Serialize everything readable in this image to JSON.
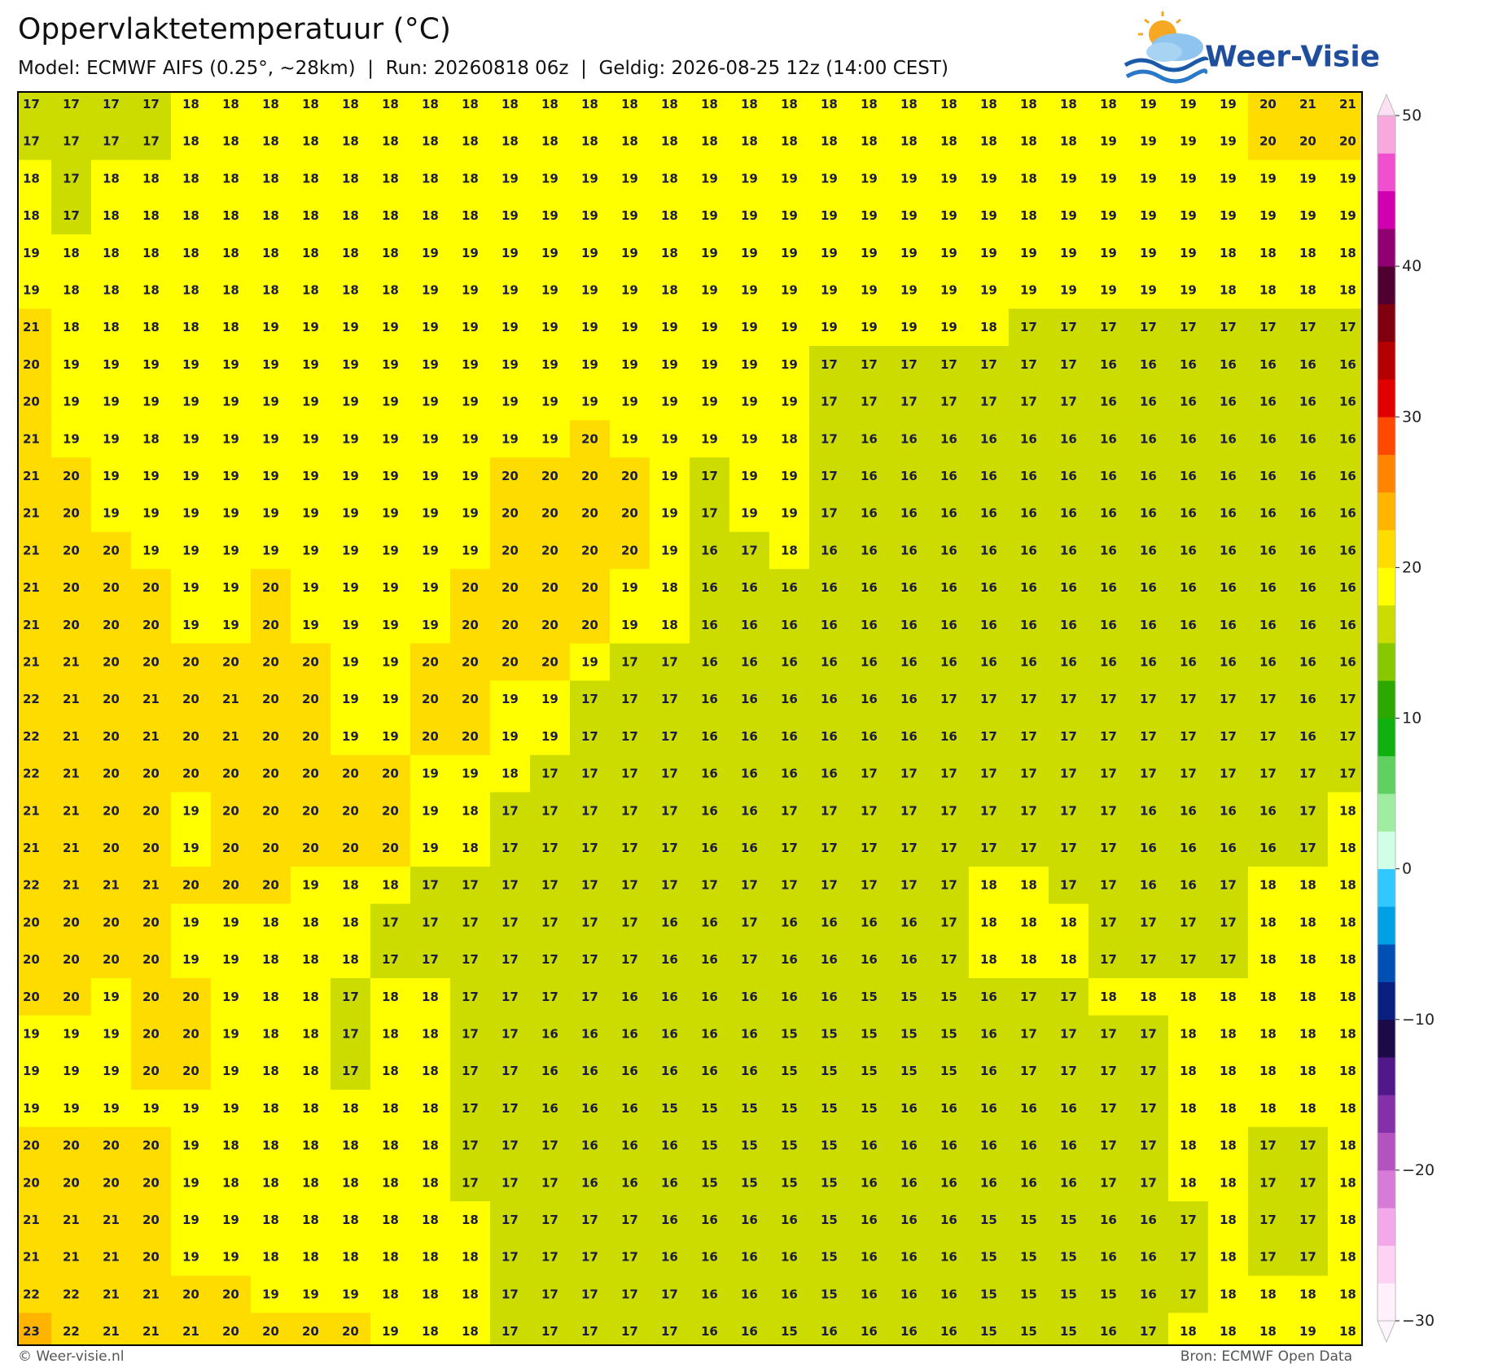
{
  "header": {
    "title": "Oppervlaktetemperatuur (°C)",
    "subtitle": "Model: ECMWF AIFS (0.25°, ~28km)  |  Run: 20260818 06z  |  Geldig: 2026-08-25 12z (14:00 CEST)"
  },
  "logo": {
    "text": "Weer-Visie"
  },
  "map": {
    "grid": [
      [
        17,
        17,
        17,
        17,
        18,
        18,
        18,
        18,
        18,
        18,
        18,
        18,
        18,
        18,
        18,
        18,
        18,
        18,
        18,
        18,
        18,
        18,
        18,
        18,
        18,
        18,
        18,
        18,
        19,
        19,
        19,
        20,
        21,
        21
      ],
      [
        17,
        17,
        17,
        17,
        18,
        18,
        18,
        18,
        18,
        18,
        18,
        18,
        18,
        18,
        18,
        18,
        18,
        18,
        18,
        18,
        18,
        18,
        18,
        18,
        18,
        18,
        18,
        19,
        19,
        19,
        19,
        20,
        20,
        20
      ],
      [
        18,
        17,
        18,
        18,
        18,
        18,
        18,
        18,
        18,
        18,
        18,
        18,
        19,
        19,
        19,
        19,
        18,
        19,
        19,
        19,
        19,
        19,
        19,
        19,
        19,
        18,
        19,
        19,
        19,
        19,
        19,
        19,
        19,
        19
      ],
      [
        18,
        17,
        18,
        18,
        18,
        18,
        18,
        18,
        18,
        18,
        18,
        18,
        19,
        19,
        19,
        19,
        18,
        19,
        19,
        19,
        19,
        19,
        19,
        19,
        19,
        18,
        19,
        19,
        19,
        19,
        19,
        19,
        19,
        19
      ],
      [
        19,
        18,
        18,
        18,
        18,
        18,
        18,
        18,
        18,
        18,
        19,
        19,
        19,
        19,
        19,
        19,
        18,
        19,
        19,
        19,
        19,
        19,
        19,
        19,
        19,
        19,
        19,
        19,
        19,
        19,
        18,
        18,
        18,
        18
      ],
      [
        19,
        18,
        18,
        18,
        18,
        18,
        18,
        18,
        18,
        18,
        19,
        19,
        19,
        19,
        19,
        19,
        18,
        19,
        19,
        19,
        19,
        19,
        19,
        19,
        19,
        19,
        19,
        19,
        19,
        19,
        18,
        18,
        18,
        18
      ],
      [
        21,
        18,
        18,
        18,
        18,
        18,
        19,
        19,
        19,
        19,
        19,
        19,
        19,
        19,
        19,
        19,
        19,
        19,
        19,
        19,
        19,
        19,
        19,
        19,
        18,
        17,
        17,
        17,
        17,
        17,
        17,
        17,
        17,
        17
      ],
      [
        20,
        19,
        19,
        19,
        19,
        19,
        19,
        19,
        19,
        19,
        19,
        19,
        19,
        19,
        19,
        19,
        19,
        19,
        19,
        19,
        17,
        17,
        17,
        17,
        17,
        17,
        17,
        16,
        16,
        16,
        16,
        16,
        16,
        16
      ],
      [
        20,
        19,
        19,
        19,
        19,
        19,
        19,
        19,
        19,
        19,
        19,
        19,
        19,
        19,
        19,
        19,
        19,
        19,
        19,
        19,
        17,
        17,
        17,
        17,
        17,
        17,
        17,
        16,
        16,
        16,
        16,
        16,
        16,
        16
      ],
      [
        21,
        19,
        19,
        18,
        19,
        19,
        19,
        19,
        19,
        19,
        19,
        19,
        19,
        19,
        20,
        19,
        19,
        19,
        19,
        18,
        17,
        16,
        16,
        16,
        16,
        16,
        16,
        16,
        16,
        16,
        16,
        16,
        16,
        16
      ],
      [
        21,
        20,
        19,
        19,
        19,
        19,
        19,
        19,
        19,
        19,
        19,
        19,
        20,
        20,
        20,
        20,
        19,
        17,
        19,
        19,
        17,
        16,
        16,
        16,
        16,
        16,
        16,
        16,
        16,
        16,
        16,
        16,
        16,
        16
      ],
      [
        21,
        20,
        19,
        19,
        19,
        19,
        19,
        19,
        19,
        19,
        19,
        19,
        20,
        20,
        20,
        20,
        19,
        17,
        19,
        19,
        17,
        16,
        16,
        16,
        16,
        16,
        16,
        16,
        16,
        16,
        16,
        16,
        16,
        16
      ],
      [
        21,
        20,
        20,
        19,
        19,
        19,
        19,
        19,
        19,
        19,
        19,
        19,
        20,
        20,
        20,
        20,
        19,
        16,
        17,
        18,
        16,
        16,
        16,
        16,
        16,
        16,
        16,
        16,
        16,
        16,
        16,
        16,
        16,
        16
      ],
      [
        21,
        20,
        20,
        20,
        19,
        19,
        20,
        19,
        19,
        19,
        19,
        20,
        20,
        20,
        20,
        19,
        18,
        16,
        16,
        16,
        16,
        16,
        16,
        16,
        16,
        16,
        16,
        16,
        16,
        16,
        16,
        16,
        16,
        16
      ],
      [
        21,
        20,
        20,
        20,
        19,
        19,
        20,
        19,
        19,
        19,
        19,
        20,
        20,
        20,
        20,
        19,
        18,
        16,
        16,
        16,
        16,
        16,
        16,
        16,
        16,
        16,
        16,
        16,
        16,
        16,
        16,
        16,
        16,
        16
      ],
      [
        21,
        21,
        20,
        20,
        20,
        20,
        20,
        20,
        19,
        19,
        20,
        20,
        20,
        20,
        19,
        17,
        17,
        16,
        16,
        16,
        16,
        16,
        16,
        16,
        16,
        16,
        16,
        16,
        16,
        16,
        16,
        16,
        16,
        16
      ],
      [
        22,
        21,
        20,
        21,
        20,
        21,
        20,
        20,
        19,
        19,
        20,
        20,
        19,
        19,
        17,
        17,
        17,
        16,
        16,
        16,
        16,
        16,
        16,
        17,
        17,
        17,
        17,
        17,
        17,
        17,
        17,
        17,
        16,
        17
      ],
      [
        22,
        21,
        20,
        21,
        20,
        21,
        20,
        20,
        19,
        19,
        20,
        20,
        19,
        19,
        17,
        17,
        17,
        16,
        16,
        16,
        16,
        16,
        16,
        16,
        17,
        17,
        17,
        17,
        17,
        17,
        17,
        17,
        16,
        17
      ],
      [
        22,
        21,
        20,
        20,
        20,
        20,
        20,
        20,
        20,
        20,
        19,
        19,
        18,
        17,
        17,
        17,
        17,
        16,
        16,
        16,
        16,
        17,
        17,
        17,
        17,
        17,
        17,
        17,
        17,
        17,
        17,
        17,
        17,
        17
      ],
      [
        21,
        21,
        20,
        20,
        19,
        20,
        20,
        20,
        20,
        20,
        19,
        18,
        17,
        17,
        17,
        17,
        17,
        16,
        16,
        17,
        17,
        17,
        17,
        17,
        17,
        17,
        17,
        17,
        16,
        16,
        16,
        16,
        17,
        18
      ],
      [
        21,
        21,
        20,
        20,
        19,
        20,
        20,
        20,
        20,
        20,
        19,
        18,
        17,
        17,
        17,
        17,
        17,
        16,
        16,
        17,
        17,
        17,
        17,
        17,
        17,
        17,
        17,
        17,
        16,
        16,
        16,
        16,
        17,
        18
      ],
      [
        22,
        21,
        21,
        21,
        20,
        20,
        20,
        19,
        18,
        18,
        17,
        17,
        17,
        17,
        17,
        17,
        17,
        17,
        17,
        17,
        17,
        17,
        17,
        17,
        18,
        18,
        17,
        17,
        16,
        16,
        17,
        18,
        18,
        18
      ],
      [
        20,
        20,
        20,
        20,
        19,
        19,
        18,
        18,
        18,
        17,
        17,
        17,
        17,
        17,
        17,
        17,
        16,
        16,
        17,
        16,
        16,
        16,
        16,
        17,
        18,
        18,
        18,
        17,
        17,
        17,
        17,
        18,
        18,
        18
      ],
      [
        20,
        20,
        20,
        20,
        19,
        19,
        18,
        18,
        18,
        17,
        17,
        17,
        17,
        17,
        17,
        17,
        16,
        16,
        17,
        16,
        16,
        16,
        16,
        17,
        18,
        18,
        18,
        17,
        17,
        17,
        17,
        18,
        18,
        18
      ],
      [
        20,
        20,
        19,
        20,
        20,
        19,
        18,
        18,
        17,
        18,
        18,
        17,
        17,
        17,
        17,
        16,
        16,
        16,
        16,
        16,
        16,
        15,
        15,
        15,
        16,
        17,
        17,
        18,
        18,
        18,
        18,
        18,
        18,
        18
      ],
      [
        19,
        19,
        19,
        20,
        20,
        19,
        18,
        18,
        17,
        18,
        18,
        17,
        17,
        16,
        16,
        16,
        16,
        16,
        16,
        15,
        15,
        15,
        15,
        15,
        16,
        17,
        17,
        17,
        17,
        18,
        18,
        18,
        18,
        18
      ],
      [
        19,
        19,
        19,
        20,
        20,
        19,
        18,
        18,
        17,
        18,
        18,
        17,
        17,
        16,
        16,
        16,
        16,
        16,
        16,
        15,
        15,
        15,
        15,
        15,
        16,
        17,
        17,
        17,
        17,
        18,
        18,
        18,
        18,
        18
      ],
      [
        19,
        19,
        19,
        19,
        19,
        19,
        18,
        18,
        18,
        18,
        18,
        17,
        17,
        16,
        16,
        16,
        15,
        15,
        15,
        15,
        15,
        15,
        16,
        16,
        16,
        16,
        16,
        17,
        17,
        18,
        18,
        18,
        18,
        18
      ],
      [
        20,
        20,
        20,
        20,
        19,
        18,
        18,
        18,
        18,
        18,
        18,
        17,
        17,
        17,
        16,
        16,
        16,
        15,
        15,
        15,
        15,
        16,
        16,
        16,
        16,
        16,
        16,
        17,
        17,
        18,
        18,
        17,
        17,
        18
      ],
      [
        20,
        20,
        20,
        20,
        19,
        18,
        18,
        18,
        18,
        18,
        18,
        17,
        17,
        17,
        16,
        16,
        16,
        15,
        15,
        15,
        15,
        16,
        16,
        16,
        16,
        16,
        16,
        17,
        17,
        18,
        18,
        17,
        17,
        18
      ],
      [
        21,
        21,
        21,
        20,
        19,
        19,
        18,
        18,
        18,
        18,
        18,
        18,
        17,
        17,
        17,
        17,
        16,
        16,
        16,
        16,
        15,
        16,
        16,
        16,
        15,
        15,
        15,
        16,
        16,
        17,
        18,
        17,
        17,
        18
      ],
      [
        21,
        21,
        21,
        20,
        19,
        19,
        18,
        18,
        18,
        18,
        18,
        18,
        17,
        17,
        17,
        17,
        16,
        16,
        16,
        16,
        15,
        16,
        16,
        16,
        15,
        15,
        15,
        16,
        16,
        17,
        18,
        17,
        17,
        18
      ],
      [
        22,
        22,
        21,
        21,
        20,
        20,
        19,
        19,
        19,
        18,
        18,
        18,
        17,
        17,
        17,
        17,
        17,
        16,
        16,
        16,
        15,
        16,
        16,
        16,
        15,
        15,
        15,
        15,
        16,
        17,
        18,
        18,
        18,
        18
      ],
      [
        23,
        22,
        21,
        21,
        21,
        20,
        20,
        20,
        20,
        19,
        18,
        18,
        17,
        17,
        17,
        17,
        17,
        16,
        16,
        15,
        16,
        16,
        16,
        16,
        15,
        15,
        15,
        16,
        17,
        18,
        18,
        18,
        19,
        18
      ]
    ]
  },
  "colorbar": {
    "lim": [
      -30,
      50
    ],
    "ticks": [
      {
        "value": -30,
        "label": "−30"
      },
      {
        "value": -20,
        "label": "−20"
      },
      {
        "value": -10,
        "label": "−10"
      },
      0,
      10,
      20,
      30,
      40,
      50
    ],
    "colors": [
      "#fff0fc",
      "#fdd2f4",
      "#f2a8ea",
      "#d87ad8",
      "#b452c0",
      "#8430a8",
      "#501888",
      "#1c0a48",
      "#0a2080",
      "#0050b4",
      "#00a0e6",
      "#30c8ff",
      "#d0ffe8",
      "#a0eca0",
      "#60d060",
      "#10b010",
      "#2ca800",
      "#88c800",
      "#ccdc00",
      "#ffff00",
      "#ffdc00",
      "#ffb400",
      "#ff8400",
      "#ff4800",
      "#e00000",
      "#b40000",
      "#800010",
      "#500030",
      "#900070",
      "#d000b0",
      "#f050d0",
      "#f8a8dc"
    ],
    "under_color": "#fff6fd",
    "over_color": "#fde0f4"
  },
  "footer": {
    "left": "© Weer-visie.nl",
    "right": "Bron: ECMWF Open Data"
  }
}
